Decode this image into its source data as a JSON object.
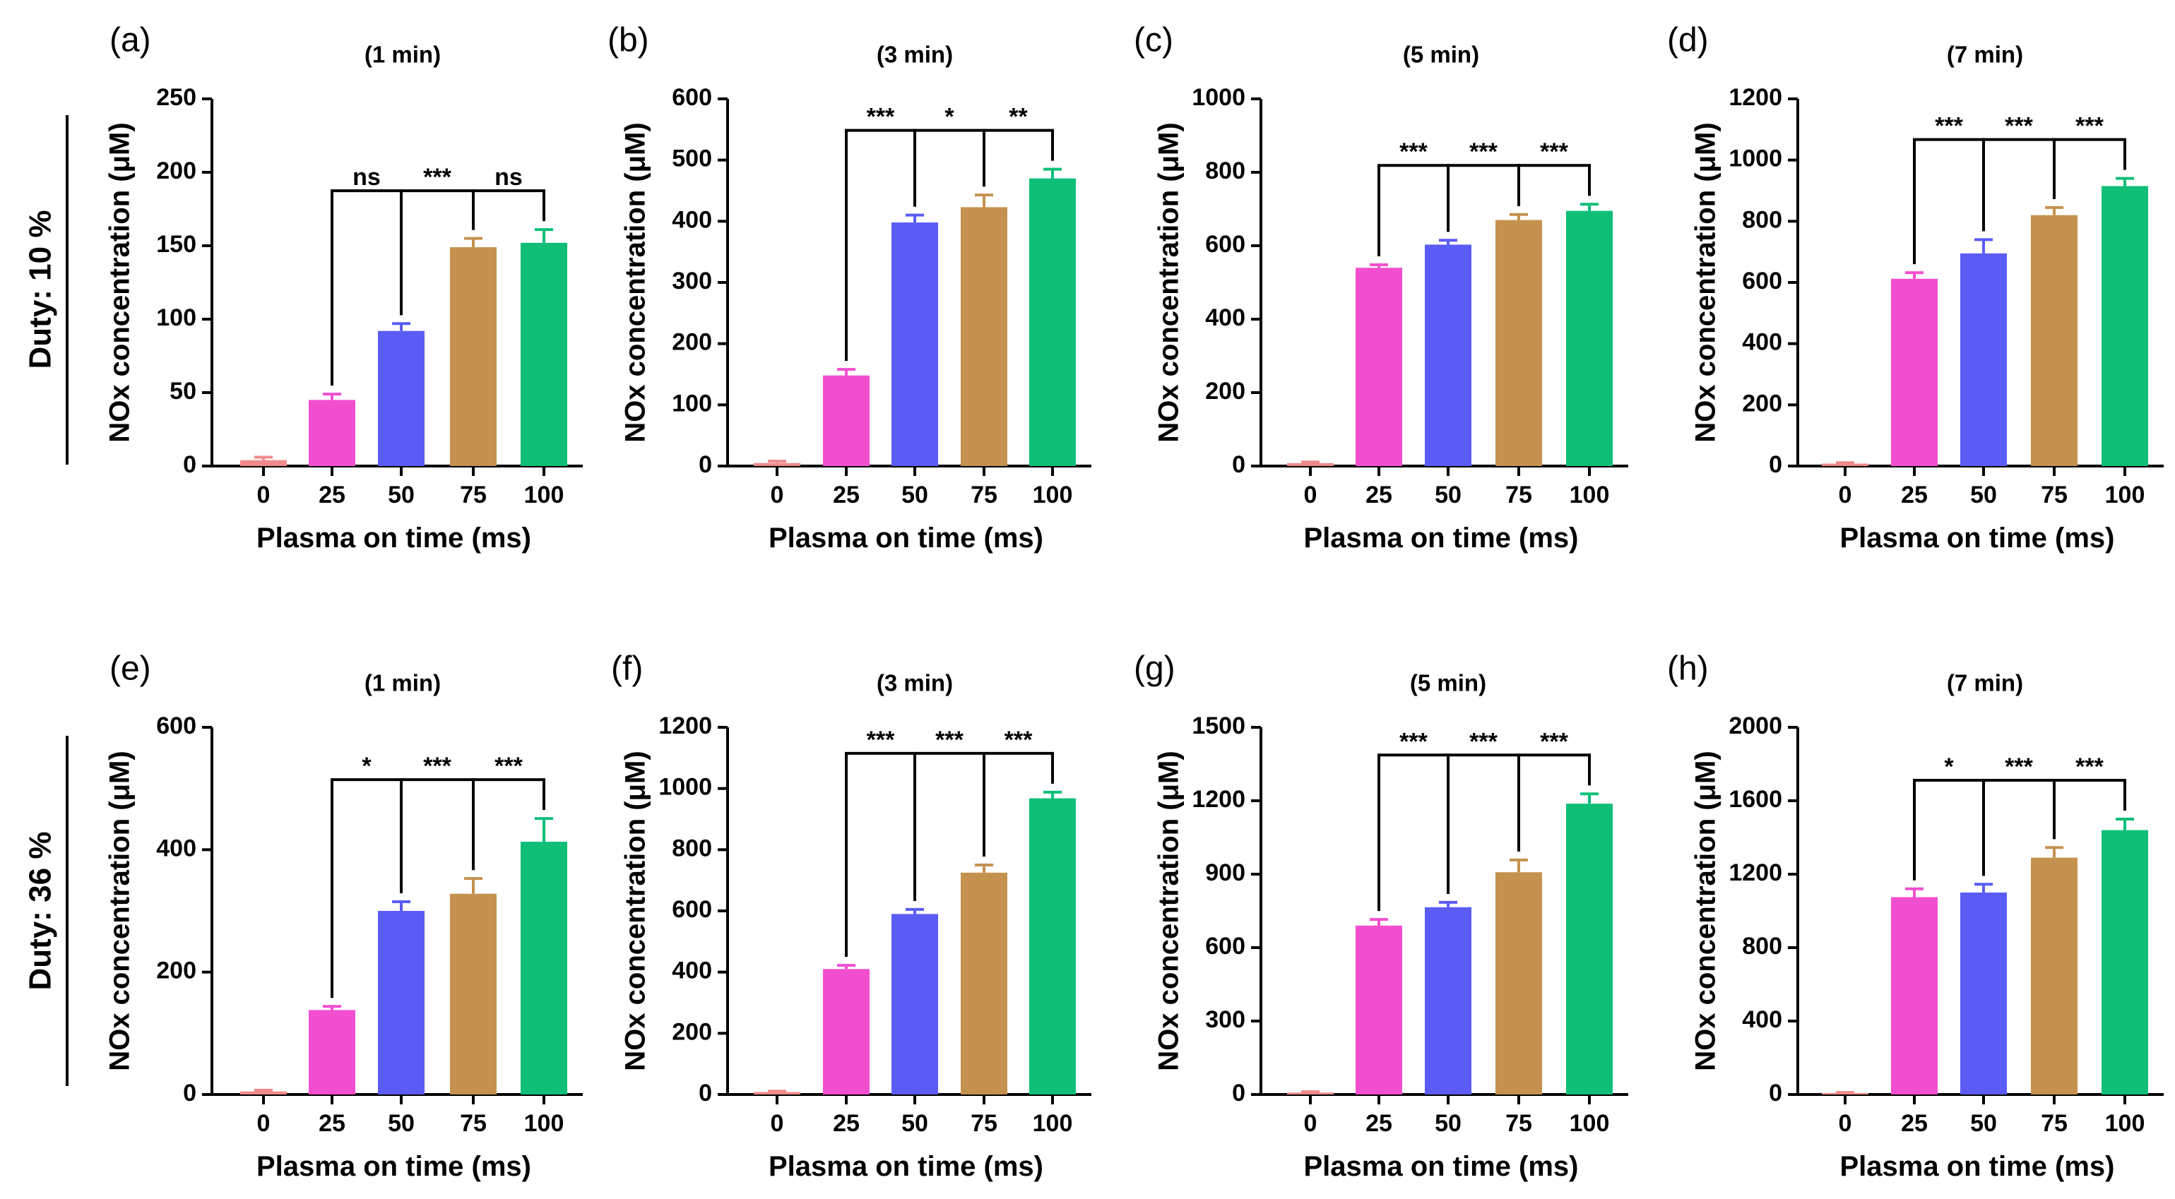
{
  "colors": {
    "c0": "#f08a8a",
    "c25": "#f24fd0",
    "c50": "#5a5cf5",
    "c75": "#c4924e",
    "c100": "#0fbf78",
    "axis": "#000000"
  },
  "rows": [
    {
      "label": "Duty: 10 %"
    },
    {
      "label": "Duty: 36 %"
    }
  ],
  "chart_data": [
    {
      "type": "bar",
      "panel": "(a)",
      "title": "(1 min)",
      "xlabel": "Plasma on time (ms)",
      "ylabel": "NOx concentration (μM)",
      "categories": [
        "0",
        "25",
        "50",
        "75",
        "100"
      ],
      "values": [
        4,
        45,
        92,
        149,
        152
      ],
      "errors": [
        2,
        4,
        5,
        6,
        9
      ],
      "ylim": [
        0,
        250
      ],
      "yticks": [
        0,
        50,
        100,
        150,
        200,
        250
      ],
      "significance": [
        {
          "from": 1,
          "to": 2,
          "label": "ns"
        },
        {
          "from": 2,
          "to": 3,
          "label": "***"
        },
        {
          "from": 3,
          "to": 4,
          "label": "ns"
        }
      ]
    },
    {
      "type": "bar",
      "panel": "(b)",
      "title": "(3 min)",
      "xlabel": "Plasma on time (ms)",
      "ylabel": "NOx concentration (μM)",
      "categories": [
        "0",
        "25",
        "50",
        "75",
        "100"
      ],
      "values": [
        5,
        148,
        398,
        423,
        470
      ],
      "errors": [
        3,
        10,
        12,
        20,
        15
      ],
      "ylim": [
        0,
        600
      ],
      "yticks": [
        0,
        100,
        200,
        300,
        400,
        500,
        600
      ],
      "significance": [
        {
          "from": 1,
          "to": 2,
          "label": "***"
        },
        {
          "from": 2,
          "to": 3,
          "label": "*"
        },
        {
          "from": 3,
          "to": 4,
          "label": "**"
        }
      ]
    },
    {
      "type": "bar",
      "panel": "(c)",
      "title": "(5 min)",
      "xlabel": "Plasma on time (ms)",
      "ylabel": "NOx concentration (μM)",
      "categories": [
        "0",
        "25",
        "50",
        "75",
        "100"
      ],
      "values": [
        8,
        540,
        603,
        670,
        695
      ],
      "errors": [
        3,
        8,
        12,
        15,
        18
      ],
      "ylim": [
        0,
        1000
      ],
      "yticks": [
        0,
        200,
        400,
        600,
        800,
        1000
      ],
      "significance": [
        {
          "from": 1,
          "to": 2,
          "label": "***"
        },
        {
          "from": 2,
          "to": 3,
          "label": "***"
        },
        {
          "from": 3,
          "to": 4,
          "label": "***"
        }
      ]
    },
    {
      "type": "bar",
      "panel": "(d)",
      "title": "(7 min)",
      "xlabel": "Plasma on time (ms)",
      "ylabel": "NOx concentration (μM)",
      "categories": [
        "0",
        "25",
        "50",
        "75",
        "100"
      ],
      "values": [
        8,
        612,
        695,
        820,
        915
      ],
      "errors": [
        3,
        20,
        45,
        25,
        25
      ],
      "ylim": [
        0,
        1200
      ],
      "yticks": [
        0,
        200,
        400,
        600,
        800,
        1000,
        1200
      ],
      "significance": [
        {
          "from": 1,
          "to": 2,
          "label": "***"
        },
        {
          "from": 2,
          "to": 3,
          "label": "***"
        },
        {
          "from": 3,
          "to": 4,
          "label": "***"
        }
      ]
    },
    {
      "type": "bar",
      "panel": "(e)",
      "title": "(1 min)",
      "xlabel": "Plasma on time (ms)",
      "ylabel": "NOx concentration (μM)",
      "categories": [
        "0",
        "25",
        "50",
        "75",
        "100"
      ],
      "values": [
        5,
        138,
        300,
        328,
        413
      ],
      "errors": [
        2,
        6,
        15,
        25,
        38
      ],
      "ylim": [
        0,
        600
      ],
      "yticks": [
        0,
        200,
        400,
        600
      ],
      "significance": [
        {
          "from": 1,
          "to": 2,
          "label": "*"
        },
        {
          "from": 2,
          "to": 3,
          "label": "***"
        },
        {
          "from": 3,
          "to": 4,
          "label": "***"
        }
      ]
    },
    {
      "type": "bar",
      "panel": "(f)",
      "title": "(3 min)",
      "xlabel": "Plasma on time (ms)",
      "ylabel": "NOx concentration (μM)",
      "categories": [
        "0",
        "25",
        "50",
        "75",
        "100"
      ],
      "values": [
        8,
        410,
        590,
        725,
        968
      ],
      "errors": [
        3,
        12,
        15,
        25,
        20
      ],
      "ylim": [
        0,
        1200
      ],
      "yticks": [
        0,
        200,
        400,
        600,
        800,
        1000,
        1200
      ],
      "significance": [
        {
          "from": 1,
          "to": 2,
          "label": "***"
        },
        {
          "from": 2,
          "to": 3,
          "label": "***"
        },
        {
          "from": 3,
          "to": 4,
          "label": "***"
        }
      ]
    },
    {
      "type": "bar",
      "panel": "(g)",
      "title": "(5 min)",
      "xlabel": "Plasma on time (ms)",
      "ylabel": "NOx concentration (μM)",
      "categories": [
        "0",
        "25",
        "50",
        "75",
        "100"
      ],
      "values": [
        8,
        690,
        765,
        908,
        1188
      ],
      "errors": [
        3,
        25,
        20,
        50,
        40
      ],
      "ylim": [
        0,
        1500
      ],
      "yticks": [
        0,
        300,
        600,
        900,
        1200,
        1500
      ],
      "significance": [
        {
          "from": 1,
          "to": 2,
          "label": "***"
        },
        {
          "from": 2,
          "to": 3,
          "label": "***"
        },
        {
          "from": 3,
          "to": 4,
          "label": "***"
        }
      ]
    },
    {
      "type": "bar",
      "panel": "(h)",
      "title": "(7 min)",
      "xlabel": "Plasma on time (ms)",
      "ylabel": "NOx concentration (μM)",
      "categories": [
        "0",
        "25",
        "50",
        "75",
        "100"
      ],
      "values": [
        8,
        1075,
        1100,
        1290,
        1440
      ],
      "errors": [
        3,
        45,
        45,
        55,
        60
      ],
      "ylim": [
        0,
        2000
      ],
      "yticks": [
        0,
        400,
        800,
        1200,
        1600,
        2000
      ],
      "significance": [
        {
          "from": 1,
          "to": 2,
          "label": "*"
        },
        {
          "from": 2,
          "to": 3,
          "label": "***"
        },
        {
          "from": 3,
          "to": 4,
          "label": "***"
        }
      ]
    }
  ]
}
